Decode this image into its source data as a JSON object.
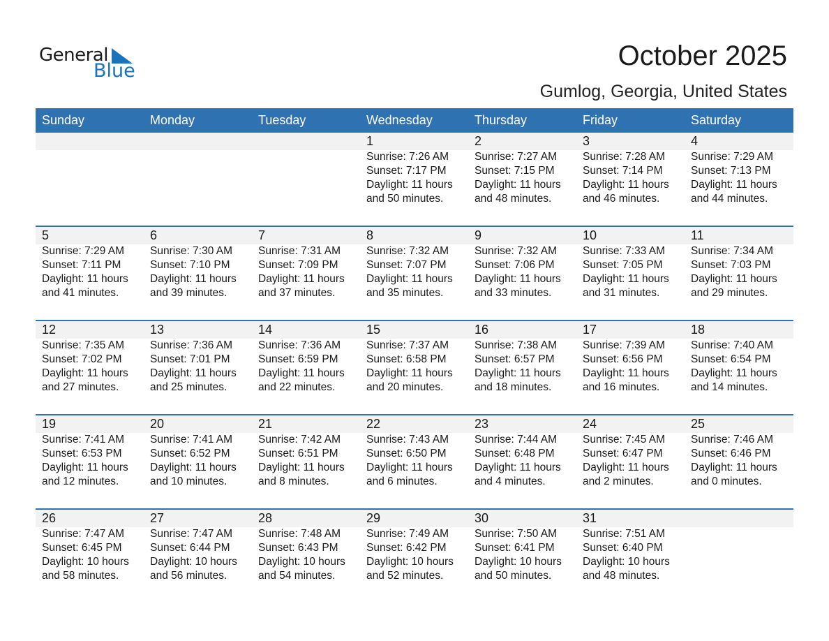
{
  "logo": {
    "general": "General",
    "blue": "Blue"
  },
  "title": "October 2025",
  "location": "Gumlog, Georgia, United States",
  "colors": {
    "header": "#2e72b2",
    "strip": "#f2f2f2",
    "logo_blue": "#1a72bb"
  },
  "weekdays": [
    "Sunday",
    "Monday",
    "Tuesday",
    "Wednesday",
    "Thursday",
    "Friday",
    "Saturday"
  ],
  "weeks": [
    [
      null,
      null,
      null,
      {
        "day": "1",
        "sunrise": "Sunrise: 7:26 AM",
        "sunset": "Sunset: 7:17 PM",
        "daylight": "Daylight: 11 hours",
        "minutes": "and 50 minutes."
      },
      {
        "day": "2",
        "sunrise": "Sunrise: 7:27 AM",
        "sunset": "Sunset: 7:15 PM",
        "daylight": "Daylight: 11 hours",
        "minutes": "and 48 minutes."
      },
      {
        "day": "3",
        "sunrise": "Sunrise: 7:28 AM",
        "sunset": "Sunset: 7:14 PM",
        "daylight": "Daylight: 11 hours",
        "minutes": "and 46 minutes."
      },
      {
        "day": "4",
        "sunrise": "Sunrise: 7:29 AM",
        "sunset": "Sunset: 7:13 PM",
        "daylight": "Daylight: 11 hours",
        "minutes": "and 44 minutes."
      }
    ],
    [
      {
        "day": "5",
        "sunrise": "Sunrise: 7:29 AM",
        "sunset": "Sunset: 7:11 PM",
        "daylight": "Daylight: 11 hours",
        "minutes": "and 41 minutes."
      },
      {
        "day": "6",
        "sunrise": "Sunrise: 7:30 AM",
        "sunset": "Sunset: 7:10 PM",
        "daylight": "Daylight: 11 hours",
        "minutes": "and 39 minutes."
      },
      {
        "day": "7",
        "sunrise": "Sunrise: 7:31 AM",
        "sunset": "Sunset: 7:09 PM",
        "daylight": "Daylight: 11 hours",
        "minutes": "and 37 minutes."
      },
      {
        "day": "8",
        "sunrise": "Sunrise: 7:32 AM",
        "sunset": "Sunset: 7:07 PM",
        "daylight": "Daylight: 11 hours",
        "minutes": "and 35 minutes."
      },
      {
        "day": "9",
        "sunrise": "Sunrise: 7:32 AM",
        "sunset": "Sunset: 7:06 PM",
        "daylight": "Daylight: 11 hours",
        "minutes": "and 33 minutes."
      },
      {
        "day": "10",
        "sunrise": "Sunrise: 7:33 AM",
        "sunset": "Sunset: 7:05 PM",
        "daylight": "Daylight: 11 hours",
        "minutes": "and 31 minutes."
      },
      {
        "day": "11",
        "sunrise": "Sunrise: 7:34 AM",
        "sunset": "Sunset: 7:03 PM",
        "daylight": "Daylight: 11 hours",
        "minutes": "and 29 minutes."
      }
    ],
    [
      {
        "day": "12",
        "sunrise": "Sunrise: 7:35 AM",
        "sunset": "Sunset: 7:02 PM",
        "daylight": "Daylight: 11 hours",
        "minutes": "and 27 minutes."
      },
      {
        "day": "13",
        "sunrise": "Sunrise: 7:36 AM",
        "sunset": "Sunset: 7:01 PM",
        "daylight": "Daylight: 11 hours",
        "minutes": "and 25 minutes."
      },
      {
        "day": "14",
        "sunrise": "Sunrise: 7:36 AM",
        "sunset": "Sunset: 6:59 PM",
        "daylight": "Daylight: 11 hours",
        "minutes": "and 22 minutes."
      },
      {
        "day": "15",
        "sunrise": "Sunrise: 7:37 AM",
        "sunset": "Sunset: 6:58 PM",
        "daylight": "Daylight: 11 hours",
        "minutes": "and 20 minutes."
      },
      {
        "day": "16",
        "sunrise": "Sunrise: 7:38 AM",
        "sunset": "Sunset: 6:57 PM",
        "daylight": "Daylight: 11 hours",
        "minutes": "and 18 minutes."
      },
      {
        "day": "17",
        "sunrise": "Sunrise: 7:39 AM",
        "sunset": "Sunset: 6:56 PM",
        "daylight": "Daylight: 11 hours",
        "minutes": "and 16 minutes."
      },
      {
        "day": "18",
        "sunrise": "Sunrise: 7:40 AM",
        "sunset": "Sunset: 6:54 PM",
        "daylight": "Daylight: 11 hours",
        "minutes": "and 14 minutes."
      }
    ],
    [
      {
        "day": "19",
        "sunrise": "Sunrise: 7:41 AM",
        "sunset": "Sunset: 6:53 PM",
        "daylight": "Daylight: 11 hours",
        "minutes": "and 12 minutes."
      },
      {
        "day": "20",
        "sunrise": "Sunrise: 7:41 AM",
        "sunset": "Sunset: 6:52 PM",
        "daylight": "Daylight: 11 hours",
        "minutes": "and 10 minutes."
      },
      {
        "day": "21",
        "sunrise": "Sunrise: 7:42 AM",
        "sunset": "Sunset: 6:51 PM",
        "daylight": "Daylight: 11 hours",
        "minutes": "and 8 minutes."
      },
      {
        "day": "22",
        "sunrise": "Sunrise: 7:43 AM",
        "sunset": "Sunset: 6:50 PM",
        "daylight": "Daylight: 11 hours",
        "minutes": "and 6 minutes."
      },
      {
        "day": "23",
        "sunrise": "Sunrise: 7:44 AM",
        "sunset": "Sunset: 6:48 PM",
        "daylight": "Daylight: 11 hours",
        "minutes": "and 4 minutes."
      },
      {
        "day": "24",
        "sunrise": "Sunrise: 7:45 AM",
        "sunset": "Sunset: 6:47 PM",
        "daylight": "Daylight: 11 hours",
        "minutes": "and 2 minutes."
      },
      {
        "day": "25",
        "sunrise": "Sunrise: 7:46 AM",
        "sunset": "Sunset: 6:46 PM",
        "daylight": "Daylight: 11 hours",
        "minutes": "and 0 minutes."
      }
    ],
    [
      {
        "day": "26",
        "sunrise": "Sunrise: 7:47 AM",
        "sunset": "Sunset: 6:45 PM",
        "daylight": "Daylight: 10 hours",
        "minutes": "and 58 minutes."
      },
      {
        "day": "27",
        "sunrise": "Sunrise: 7:47 AM",
        "sunset": "Sunset: 6:44 PM",
        "daylight": "Daylight: 10 hours",
        "minutes": "and 56 minutes."
      },
      {
        "day": "28",
        "sunrise": "Sunrise: 7:48 AM",
        "sunset": "Sunset: 6:43 PM",
        "daylight": "Daylight: 10 hours",
        "minutes": "and 54 minutes."
      },
      {
        "day": "29",
        "sunrise": "Sunrise: 7:49 AM",
        "sunset": "Sunset: 6:42 PM",
        "daylight": "Daylight: 10 hours",
        "minutes": "and 52 minutes."
      },
      {
        "day": "30",
        "sunrise": "Sunrise: 7:50 AM",
        "sunset": "Sunset: 6:41 PM",
        "daylight": "Daylight: 10 hours",
        "minutes": "and 50 minutes."
      },
      {
        "day": "31",
        "sunrise": "Sunrise: 7:51 AM",
        "sunset": "Sunset: 6:40 PM",
        "daylight": "Daylight: 10 hours",
        "minutes": "and 48 minutes."
      },
      null
    ]
  ]
}
